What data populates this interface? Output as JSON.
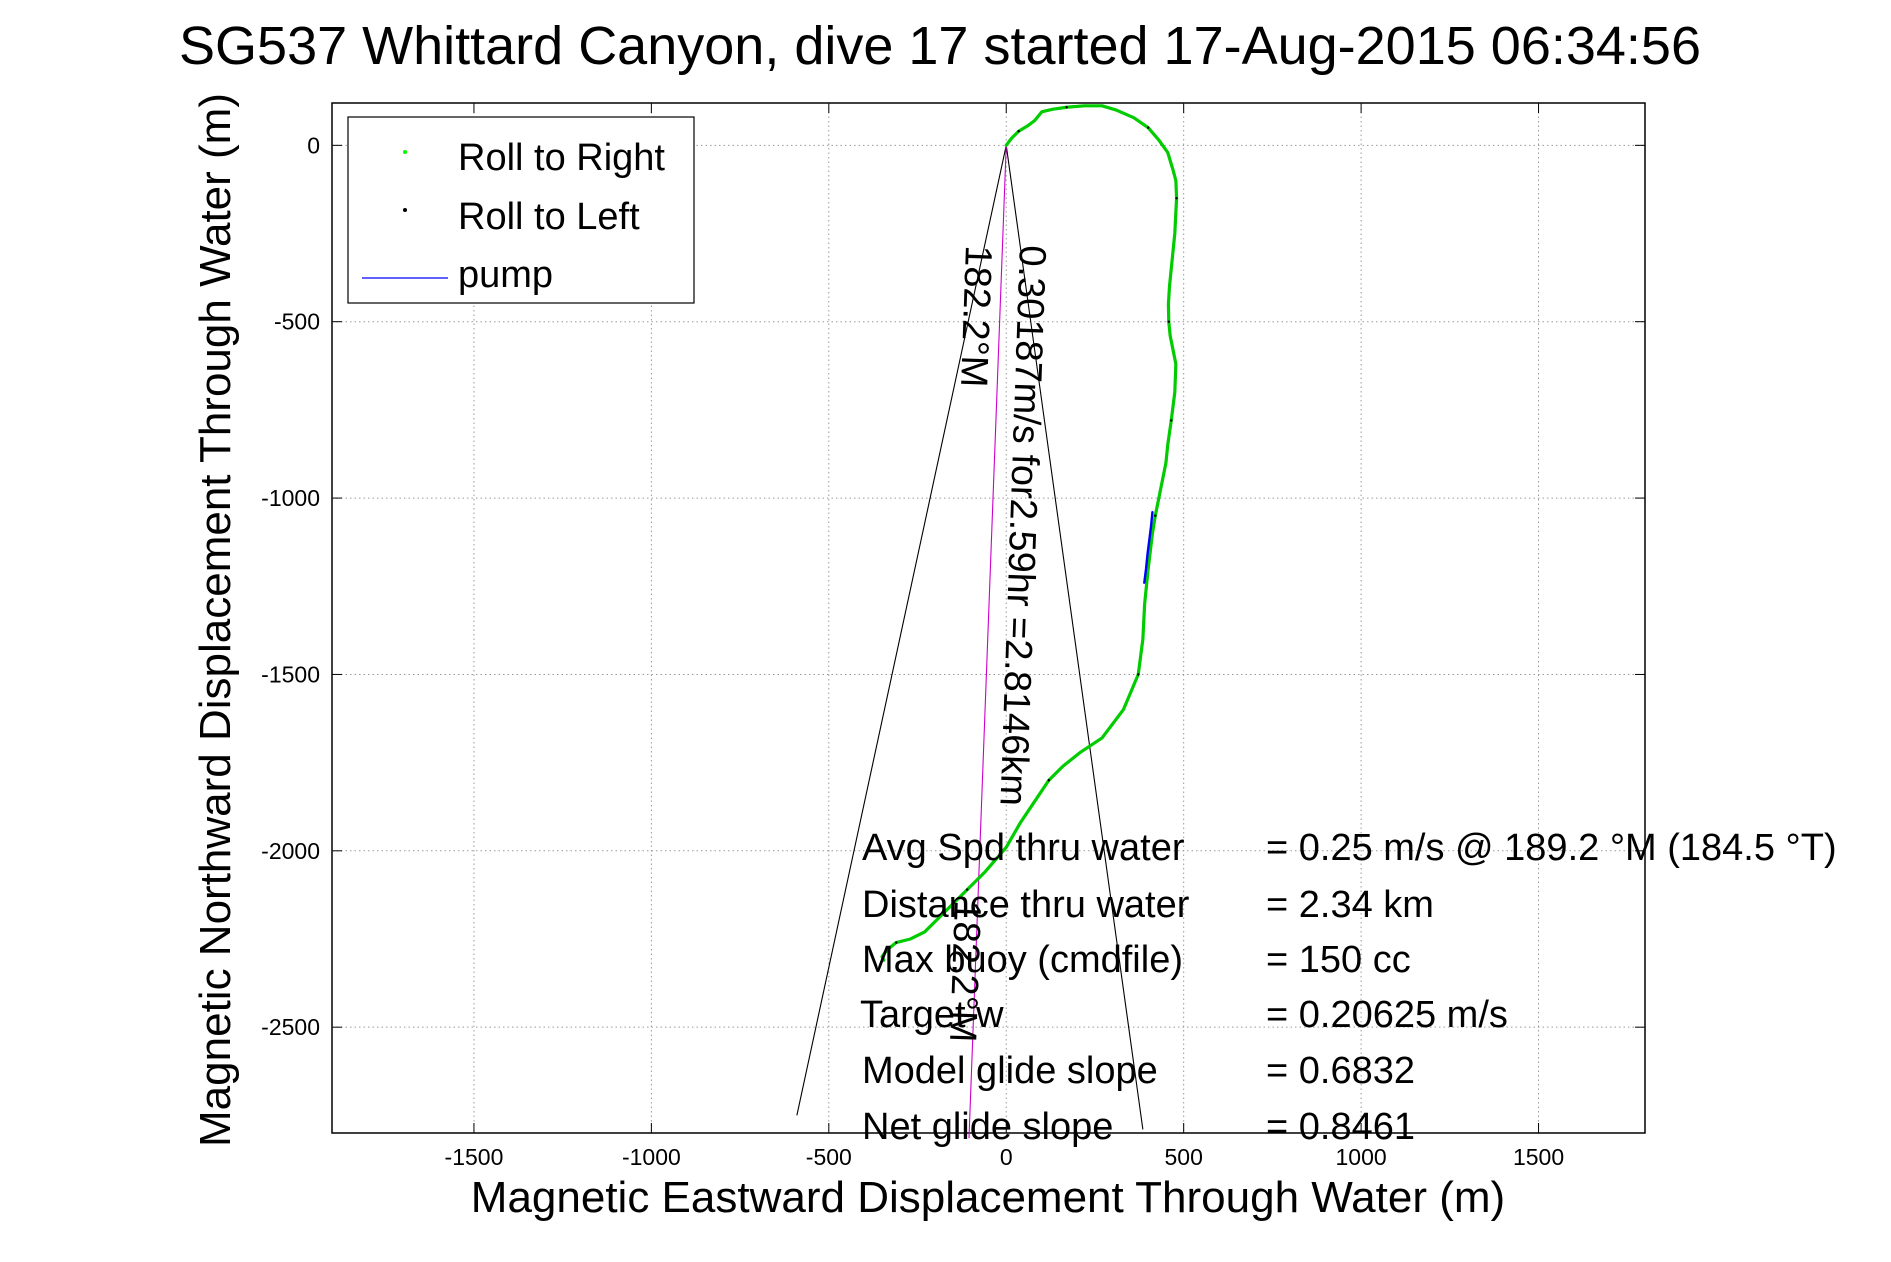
{
  "chart_data": {
    "type": "line",
    "title": "SG537 Whittard Canyon, dive 17 started 17-Aug-2015 06:34:56",
    "xlabel": "Magnetic Eastward Displacement Through Water (m)",
    "ylabel": "Magnetic Northward Displacement Through Water (m)",
    "xlim": [
      -1900,
      1800
    ],
    "ylim": [
      -2800,
      120
    ],
    "xticks": [
      -1500,
      -1000,
      -500,
      0,
      500,
      1000,
      1500
    ],
    "yticks": [
      0,
      -500,
      -1000,
      -1500,
      -2000,
      -2500
    ],
    "grid": true,
    "legend": {
      "placement": "top-left",
      "entries": [
        {
          "label": "Roll to Right",
          "color": "#00ff00",
          "marker": "dot"
        },
        {
          "label": "Roll to Left",
          "color": "#000000",
          "marker": "dot"
        },
        {
          "label": "pump",
          "color": "#0000ff",
          "marker": "line"
        }
      ]
    },
    "series": [
      {
        "name": "Roll to Right",
        "color": "#00cc00",
        "x": [
          0,
          15,
          35,
          60,
          80,
          100,
          130,
          170,
          220,
          270,
          310,
          360,
          400,
          430,
          455,
          470,
          478,
          480,
          475,
          465,
          460,
          457,
          458,
          462,
          470,
          478,
          475,
          465,
          455,
          450,
          440,
          430,
          420,
          412,
          400,
          390,
          385,
          372,
          330,
          270,
          210,
          160,
          120,
          80,
          40,
          0,
          -60,
          -110,
          -150,
          -190,
          -230,
          -270,
          -310,
          -335,
          -350,
          -345
        ],
        "y": [
          0,
          20,
          40,
          55,
          70,
          95,
          102,
          108,
          112,
          112,
          100,
          78,
          50,
          15,
          -20,
          -70,
          -100,
          -150,
          -250,
          -350,
          -400,
          -450,
          -500,
          -540,
          -580,
          -620,
          -700,
          -780,
          -850,
          -900,
          -950,
          -1000,
          -1050,
          -1100,
          -1200,
          -1300,
          -1400,
          -1500,
          -1600,
          -1680,
          -1720,
          -1760,
          -1800,
          -1860,
          -1920,
          -1990,
          -2060,
          -2110,
          -2150,
          -2190,
          -2230,
          -2250,
          -2260,
          -2280,
          -2300,
          -2310
        ]
      },
      {
        "name": "pump",
        "color": "#0000ff",
        "x": [
          412,
          408,
          403,
          398,
          394,
          389
        ],
        "y": [
          -1040,
          -1080,
          -1120,
          -1160,
          -1200,
          -1240
        ]
      }
    ],
    "reference_lines": [
      {
        "x": [
          0,
          -590
        ],
        "y": [
          0,
          -2750
        ],
        "color": "#000000"
      },
      {
        "x": [
          0,
          385
        ],
        "y": [
          0,
          -2790
        ],
        "color": "#000000"
      },
      {
        "x": [
          0,
          -105
        ],
        "y": [
          0,
          -2815
        ],
        "color": "#cc00cc"
      }
    ],
    "annotations": {
      "vector_label": "0.30187m/s for2.59hr =2.8146km",
      "heading_label": "182.2°M",
      "heading_label_2": "182.2°M"
    },
    "stats": [
      {
        "label": "Avg Spd thru water",
        "value": "=  0.25 m/s @ 189.2 °M (184.5 °T)"
      },
      {
        "label": "Distance thru water",
        "value": "=  2.34 km"
      },
      {
        "label": "Max buoy (cmdfile)",
        "value": "= 150 cc"
      },
      {
        "label": "Target w",
        "value": "= 0.20625 m/s"
      },
      {
        "label": "Model glide slope",
        "value": "= 0.6832"
      },
      {
        "label": "Net glide slope",
        "value": "= 0.8461"
      }
    ]
  }
}
